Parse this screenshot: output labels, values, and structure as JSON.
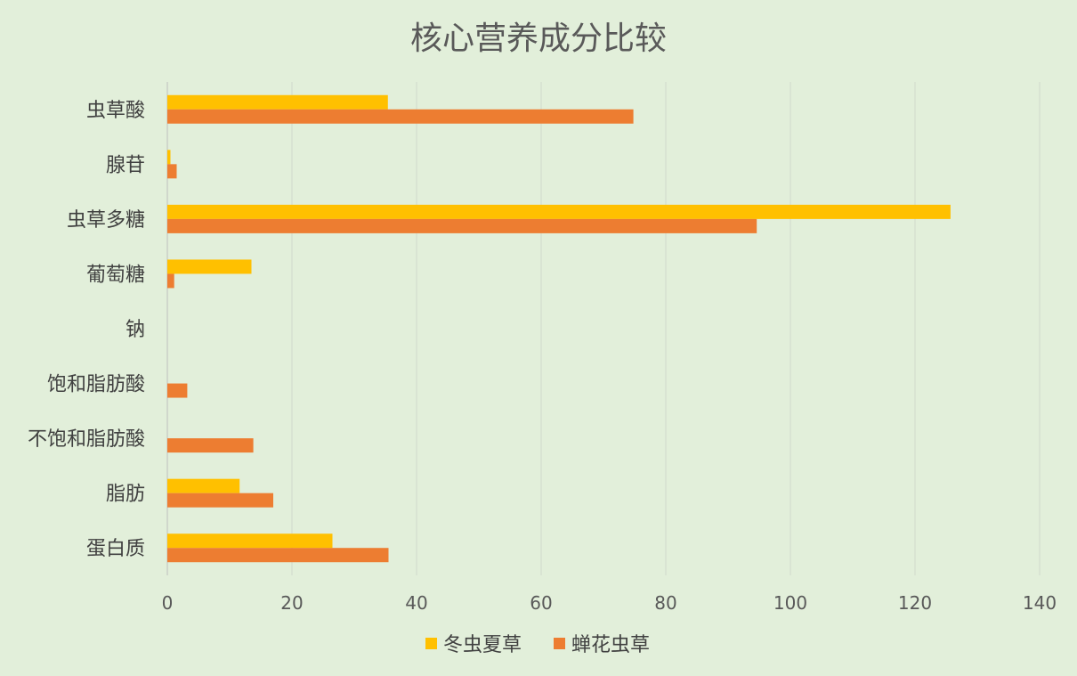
{
  "chart_data": {
    "type": "bar",
    "orientation": "horizontal",
    "title": "核心营养成分比较",
    "categories": [
      "虫草酸",
      "腺苷",
      "虫草多糖",
      "葡萄糖",
      "钠",
      "饱和脂肪酸",
      "不饱和脂肪酸",
      "脂肪",
      "蛋白质"
    ],
    "series": [
      {
        "name": "冬虫夏草",
        "color": "#ffc000",
        "values": [
          35.4,
          0.5,
          125.7,
          13.5,
          0,
          0,
          0,
          11.6,
          26.5
        ]
      },
      {
        "name": "蝉花虫草",
        "color": "#ed7d31",
        "values": [
          74.8,
          1.5,
          94.6,
          1.1,
          0,
          3.2,
          13.8,
          17,
          35.5
        ]
      }
    ],
    "xlim": [
      0,
      140
    ],
    "xticks": [
      0,
      20,
      40,
      60,
      80,
      100,
      120,
      140
    ],
    "grid": true,
    "legend": "bottom"
  }
}
